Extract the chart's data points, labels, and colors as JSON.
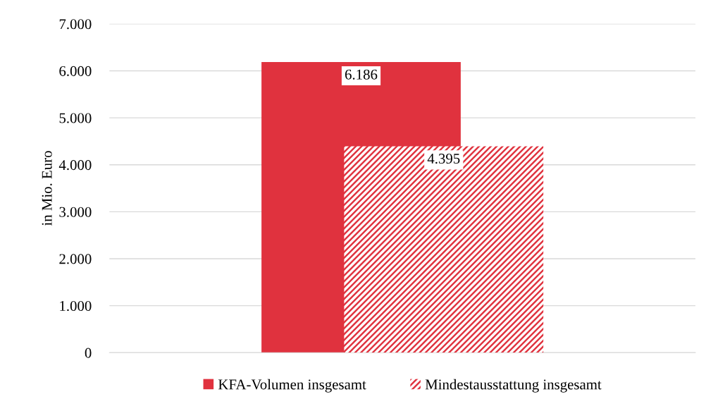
{
  "chart_data": {
    "type": "bar",
    "ylabel": "in Mio. Euro",
    "categories": [
      null
    ],
    "series": [
      {
        "name": "KFA-Volumen insgesamt",
        "color": "#e0323e",
        "values": [
          6186
        ],
        "value_labels": [
          "6.186"
        ]
      },
      {
        "name": "Mindestausstattung insgesamt",
        "color": "#e0323e",
        "values": [
          4395
        ],
        "value_labels": [
          "4.395"
        ]
      }
    ],
    "ylim": [
      0,
      7000
    ],
    "yticks": [
      {
        "value": 0,
        "label": "0"
      },
      {
        "value": 1000,
        "label": "1.000"
      },
      {
        "value": 2000,
        "label": "2.000"
      },
      {
        "value": 3000,
        "label": "3.000"
      },
      {
        "value": 4000,
        "label": "4.000"
      },
      {
        "value": 5000,
        "label": "5.000"
      },
      {
        "value": 6000,
        "label": "6.000"
      },
      {
        "value": 7000,
        "label": "7.000"
      }
    ],
    "grid": "y",
    "legend": "bottom"
  }
}
